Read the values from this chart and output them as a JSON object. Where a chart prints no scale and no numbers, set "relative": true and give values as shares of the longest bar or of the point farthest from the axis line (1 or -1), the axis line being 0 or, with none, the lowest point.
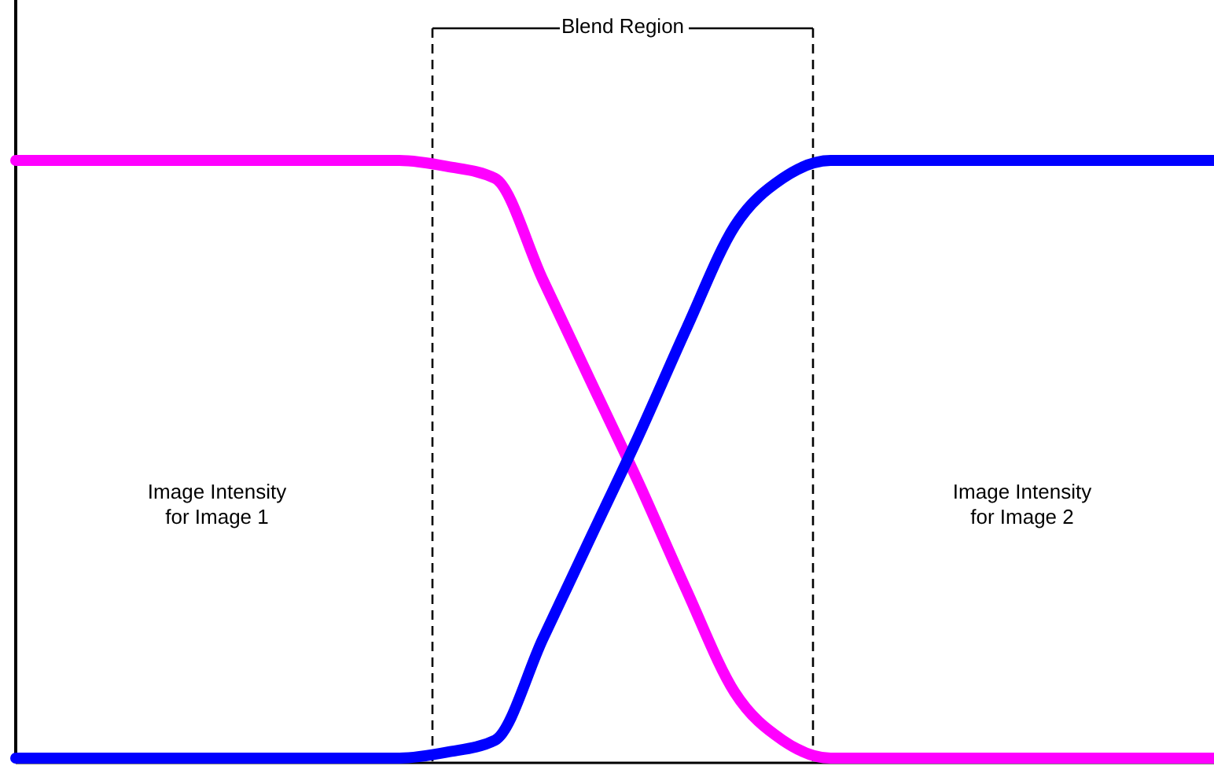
{
  "chart_data": {
    "type": "line",
    "relative": true,
    "categories": [
      null,
      null,
      null,
      null,
      null,
      null,
      null,
      null,
      null,
      null,
      null,
      null,
      null,
      null,
      null,
      null,
      null,
      null,
      null,
      null,
      null,
      null,
      null,
      null,
      null,
      null
    ],
    "series": [
      {
        "color": "#ff00ff",
        "values": [
          1,
          1,
          1,
          1,
          1,
          1,
          1,
          1,
          1,
          0.99,
          0.97,
          0.8,
          0.63,
          0.46,
          0.28,
          0.11,
          0.03,
          0,
          0,
          0,
          0,
          0,
          0,
          0,
          0,
          0
        ]
      },
      {
        "color": "#0000ff",
        "values": [
          0,
          0,
          0,
          0,
          0,
          0,
          0,
          0,
          0,
          0.01,
          0.03,
          0.2,
          0.37,
          0.54,
          0.72,
          0.89,
          0.97,
          1,
          1,
          1,
          1,
          1,
          1,
          1,
          1,
          1
        ]
      }
    ],
    "annotations": [
      "Blend Region",
      "Image Intensity\nfor Image 1",
      "Image Intensity\nfor Image 2"
    ],
    "marker": "none",
    "line_style": "solid"
  }
}
